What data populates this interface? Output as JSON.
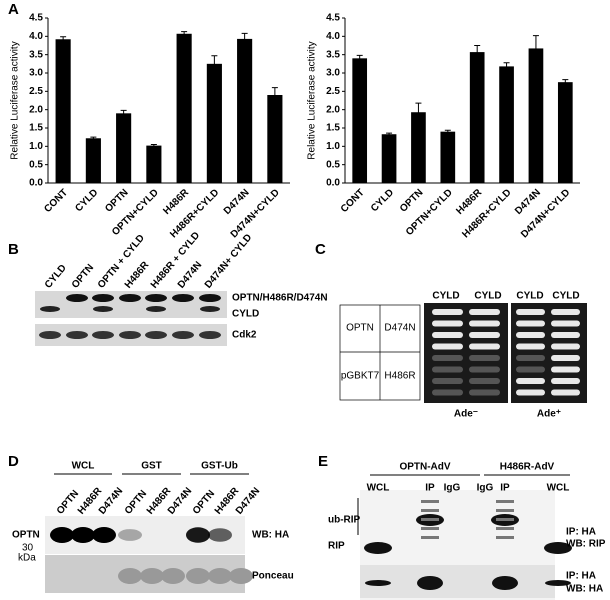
{
  "chart_data": [
    {
      "type": "bar",
      "panel": "A",
      "ylabel": "Relative Luciferase activity",
      "categories": [
        "CONT",
        "CYLD",
        "OPTN",
        "OPTN+CYLD",
        "H486R",
        "H486R+CYLD",
        "D474N",
        "D474N+CYLD"
      ],
      "values": [
        3.92,
        1.22,
        1.9,
        1.02,
        4.07,
        3.25,
        3.93,
        2.4
      ],
      "errors": [
        0.07,
        0.03,
        0.08,
        0.03,
        0.06,
        0.22,
        0.15,
        0.2
      ],
      "color": "#000000",
      "ylim": [
        0,
        4.5
      ],
      "yticks": [
        {
          "value": 0,
          "label": "0.0"
        },
        0.5,
        {
          "value": 1,
          "label": "1.0"
        },
        1.5,
        {
          "value": 2,
          "label": "2.0"
        },
        2.5,
        {
          "value": 3,
          "label": "3.0"
        },
        3.5,
        {
          "value": 4,
          "label": "4.0"
        },
        4.5
      ]
    },
    {
      "type": "bar",
      "ylabel": "Relative Luciferase activity",
      "categories": [
        "CONT",
        "CYLD",
        "OPTN",
        "OPTN+CYLD",
        "H486R",
        "H486R+CYLD",
        "D474N",
        "D474N+CYLD"
      ],
      "values": [
        3.4,
        1.33,
        1.93,
        1.4,
        3.57,
        3.18,
        3.67,
        2.75
      ],
      "errors": [
        0.08,
        0.03,
        0.25,
        0.04,
        0.18,
        0.1,
        0.35,
        0.07
      ],
      "color": "#000000",
      "ylim": [
        0,
        4.5
      ],
      "yticks": [
        {
          "value": 0,
          "label": "0.0"
        },
        0.5,
        {
          "value": 1,
          "label": "1.0"
        },
        1.5,
        {
          "value": 2,
          "label": "2.0"
        },
        2.5,
        {
          "value": 3,
          "label": "3.0"
        },
        3.5,
        {
          "value": 4,
          "label": "4.0"
        },
        4.5
      ]
    }
  ],
  "panels": {
    "b": {
      "label": "B",
      "lanes": [
        "CYLD",
        "OPTN",
        "OPTN + CYLD",
        "H486R",
        "H486R + CYLD",
        "D474N",
        "D474N+ CYLD"
      ],
      "bands": [
        "OPTN/H486R/D474N",
        "CYLD",
        "Cdk2"
      ]
    },
    "c": {
      "label": "C",
      "table": [
        [
          "OPTN",
          "D474N"
        ],
        [
          "pGBKT7",
          "H486R"
        ]
      ],
      "columns": [
        "CYLD",
        "CYLD",
        "CYLD",
        "CYLD"
      ],
      "plates": [
        "Ade⁻",
        "Ade⁺"
      ]
    },
    "d": {
      "label": "D",
      "groups": [
        "WCL",
        "GST",
        "GST-Ub"
      ],
      "lanes": [
        "OPTN",
        "H486R",
        "D474N",
        "OPTN",
        "H486R",
        "D474N",
        "OPTN",
        "H486R",
        "D474N"
      ],
      "left": [
        "OPTN",
        "30",
        "kDa"
      ],
      "right": [
        "WB: HA",
        "Ponceau"
      ]
    },
    "e": {
      "label": "E",
      "groups": [
        "OPTN-AdV",
        "H486R-AdV"
      ],
      "lanes": [
        "WCL",
        "IP",
        "IgG",
        "IgG",
        "IP",
        "WCL"
      ],
      "left": [
        "ub-RIP",
        "RIP"
      ],
      "right": [
        "IP: HA",
        "WB: RIP",
        "IP: HA",
        "WB: HA"
      ]
    }
  }
}
